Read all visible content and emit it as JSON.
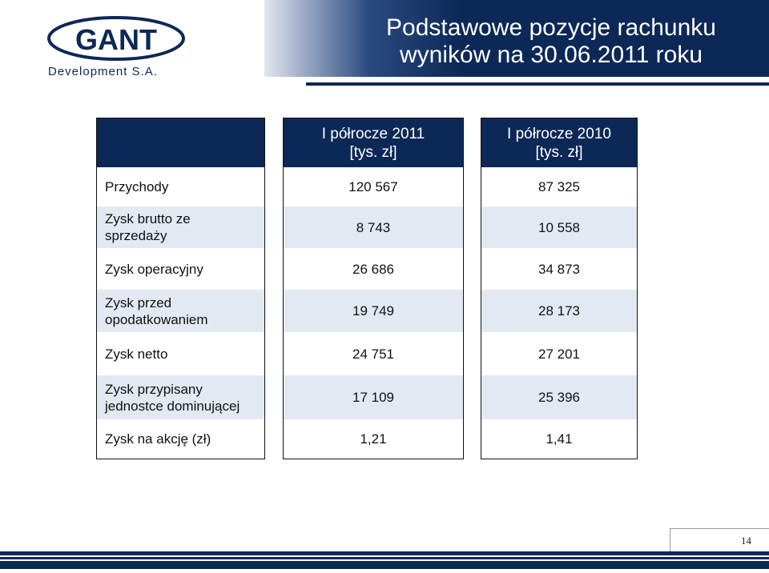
{
  "logo": {
    "brand": "GANT",
    "subtitle": "Development S.A."
  },
  "header": {
    "title_line1": "Podstawowe pozycje rachunku",
    "title_line2": "wyników na 30.06.2011 roku"
  },
  "table": {
    "columns": [
      {
        "line1": "I półrocze 2011",
        "line2": "[tys. zł]"
      },
      {
        "line1": "I półrocze 2010",
        "line2": "[tys. zł]"
      }
    ],
    "rows": [
      {
        "label_lines": [
          "Przychody"
        ],
        "v2011": "120 567",
        "v2010": "87 325"
      },
      {
        "label_lines": [
          "Zysk brutto ze",
          "sprzedaży"
        ],
        "v2011": "8 743",
        "v2010": "10 558"
      },
      {
        "label_lines": [
          "Zysk operacyjny"
        ],
        "v2011": "26 686",
        "v2010": "34 873"
      },
      {
        "label_lines": [
          "Zysk przed",
          "opodatkowaniem"
        ],
        "v2011": "19 749",
        "v2010": "28 173"
      },
      {
        "label_lines": [
          "Zysk netto"
        ],
        "v2011": "24 751",
        "v2010": "27 201"
      },
      {
        "label_lines": [
          "Zysk przypisany",
          "jednostce dominującej"
        ],
        "v2011": "17 109",
        "v2010": "25 396"
      },
      {
        "label_lines": [
          "Zysk na akcję (zł)"
        ],
        "v2011": "1,21",
        "v2010": "1,41"
      }
    ]
  },
  "footer": {
    "page_number": "14"
  },
  "colors": {
    "navy": "#0c2857",
    "row_shade": "#e3e9f3"
  }
}
